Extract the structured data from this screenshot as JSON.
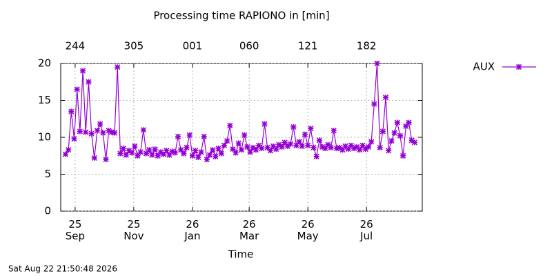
{
  "chart_data": {
    "type": "line",
    "title": "Processing time RAPIONO in [min]",
    "x_label": "Time",
    "timestamp": "Sat Aug 22 21:50:48 2026",
    "xlim": [
      229,
      605
    ],
    "ylim": [
      0,
      20
    ],
    "yticks": [
      0,
      5,
      10,
      15,
      20
    ],
    "xticks": [
      {
        "value": 244,
        "label": "25 Sep"
      },
      {
        "value": 305,
        "label": "25 Nov"
      },
      {
        "value": 366,
        "label": "26 Jan"
      },
      {
        "value": 425,
        "label": "26 Mar"
      },
      {
        "value": 486,
        "label": "26 May"
      },
      {
        "value": 547,
        "label": "26 Jul"
      }
    ],
    "x2ticks": [
      {
        "value": 244,
        "label": "244"
      },
      {
        "value": 305,
        "label": "305"
      },
      {
        "value": 366,
        "label": "001"
      },
      {
        "value": 425,
        "label": "060"
      },
      {
        "value": 486,
        "label": "121"
      },
      {
        "value": 547,
        "label": "182"
      }
    ],
    "grid": true,
    "legend": "right",
    "x": [
      234,
      237,
      240,
      243,
      246,
      249,
      252,
      255,
      258,
      261,
      264,
      267,
      270,
      273,
      276,
      279,
      282,
      285,
      288,
      291,
      294,
      297,
      300,
      303,
      306,
      309,
      312,
      315,
      318,
      321,
      324,
      327,
      330,
      333,
      336,
      339,
      342,
      345,
      348,
      351,
      354,
      357,
      360,
      363,
      366,
      369,
      372,
      375,
      378,
      381,
      384,
      387,
      390,
      393,
      396,
      399,
      402,
      405,
      408,
      411,
      414,
      417,
      420,
      423,
      426,
      429,
      432,
      435,
      438,
      441,
      444,
      447,
      450,
      453,
      456,
      459,
      462,
      465,
      468,
      471,
      474,
      477,
      480,
      483,
      486,
      489,
      492,
      495,
      498,
      501,
      504,
      507,
      510,
      513,
      516,
      519,
      522,
      525,
      528,
      531,
      534,
      537,
      540,
      543,
      546,
      549,
      552,
      555,
      558,
      561,
      564,
      567,
      570,
      573,
      576,
      579,
      582,
      585,
      588,
      591,
      594,
      597
    ],
    "series": [
      {
        "name": "AUX",
        "color": "#9400d3",
        "values": [
          7.7,
          8.3,
          13.5,
          9.8,
          16.5,
          10.8,
          19.0,
          10.7,
          17.5,
          10.5,
          7.2,
          10.9,
          11.8,
          10.6,
          7.0,
          10.9,
          10.7,
          10.6,
          19.5,
          7.8,
          8.5,
          7.6,
          8.2,
          7.9,
          8.8,
          7.5,
          8.0,
          11.0,
          7.8,
          8.3,
          7.6,
          8.4,
          7.5,
          8.0,
          7.7,
          8.2,
          7.6,
          8.1,
          7.9,
          10.1,
          8.3,
          7.8,
          8.6,
          10.3,
          7.5,
          8.2,
          7.3,
          8.0,
          10.1,
          7.0,
          7.6,
          8.3,
          7.4,
          8.5,
          7.8,
          8.9,
          9.5,
          11.6,
          8.4,
          7.9,
          9.2,
          8.3,
          10.3,
          8.7,
          8.0,
          8.6,
          8.3,
          8.9,
          8.5,
          11.8,
          8.6,
          8.2,
          8.8,
          8.4,
          9.0,
          8.7,
          9.3,
          8.8,
          9.1,
          11.4,
          8.9,
          9.4,
          8.8,
          10.4,
          8.9,
          11.2,
          8.6,
          7.4,
          9.6,
          8.7,
          8.5,
          9.0,
          8.6,
          10.9,
          8.5,
          8.6,
          8.3,
          8.8,
          8.4,
          8.9,
          8.5,
          8.7,
          8.3,
          8.9,
          8.4,
          8.7,
          9.4,
          14.5,
          20.0,
          8.6,
          10.8,
          15.4,
          8.2,
          9.5,
          10.6,
          12.0,
          10.2,
          7.5,
          11.5,
          12.0,
          9.6,
          9.3
        ]
      }
    ]
  }
}
